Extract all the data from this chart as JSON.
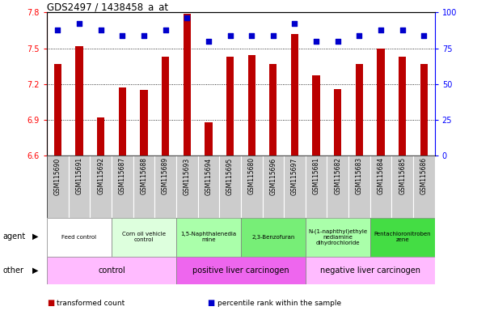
{
  "title": "GDS2497 / 1438458_a_at",
  "samples": [
    "GSM115690",
    "GSM115691",
    "GSM115692",
    "GSM115687",
    "GSM115688",
    "GSM115689",
    "GSM115693",
    "GSM115694",
    "GSM115695",
    "GSM115680",
    "GSM115696",
    "GSM115697",
    "GSM115681",
    "GSM115682",
    "GSM115683",
    "GSM115684",
    "GSM115685",
    "GSM115686"
  ],
  "bar_values": [
    7.37,
    7.52,
    6.92,
    7.17,
    7.15,
    7.43,
    7.79,
    6.88,
    7.43,
    7.44,
    7.37,
    7.62,
    7.27,
    7.16,
    7.37,
    7.5,
    7.43,
    7.37
  ],
  "percentile_values": [
    88,
    92,
    88,
    84,
    84,
    88,
    96,
    80,
    84,
    84,
    84,
    92,
    80,
    80,
    84,
    88,
    88,
    84
  ],
  "ymin": 6.6,
  "ymax": 7.8,
  "yticks": [
    6.6,
    6.9,
    7.2,
    7.5,
    7.8
  ],
  "right_yticks": [
    0,
    25,
    50,
    75,
    100
  ],
  "bar_color": "#bb0000",
  "dot_color": "#0000cc",
  "agent_groups": [
    {
      "label": "Feed control",
      "start": 0,
      "end": 3,
      "color": "#ffffff"
    },
    {
      "label": "Corn oil vehicle\ncontrol",
      "start": 3,
      "end": 6,
      "color": "#ddffdd"
    },
    {
      "label": "1,5-Naphthalenedia\nmine",
      "start": 6,
      "end": 9,
      "color": "#aaffaa"
    },
    {
      "label": "2,3-Benzofuran",
      "start": 9,
      "end": 12,
      "color": "#77ee77"
    },
    {
      "label": "N-(1-naphthyl)ethyle\nnediamine\ndihydrochloride",
      "start": 12,
      "end": 15,
      "color": "#aaffaa"
    },
    {
      "label": "Pentachloronitroben\nzene",
      "start": 15,
      "end": 18,
      "color": "#44dd44"
    }
  ],
  "other_groups": [
    {
      "label": "control",
      "start": 0,
      "end": 6,
      "color": "#ffbbff"
    },
    {
      "label": "positive liver carcinogen",
      "start": 6,
      "end": 12,
      "color": "#ee66ee"
    },
    {
      "label": "negative liver carcinogen",
      "start": 12,
      "end": 18,
      "color": "#ffbbff"
    }
  ],
  "legend_items": [
    {
      "label": "transformed count",
      "color": "#bb0000"
    },
    {
      "label": "percentile rank within the sample",
      "color": "#0000cc"
    }
  ],
  "tick_bg_color": "#cccccc",
  "agent_label": "agent",
  "other_label": "other",
  "bg_color": "#ffffff"
}
